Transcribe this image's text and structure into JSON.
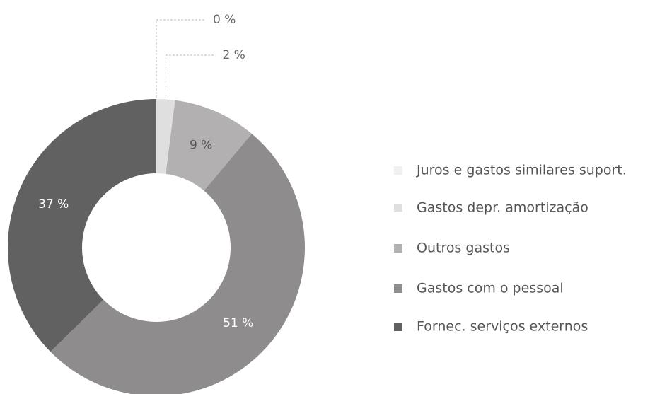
{
  "chart_data": {
    "type": "donut",
    "categories": [
      "Juros e gastos similares suport.",
      "Gastos depr. amortização",
      "Outros gastos",
      "Gastos com o pessoal",
      "Fornec. serviços externos"
    ],
    "values": [
      0,
      2,
      9,
      51,
      37
    ],
    "value_labels": [
      "0 %",
      "2 %",
      "9 %",
      "51 %",
      "37 %"
    ],
    "colors": [
      "#f0f0f0",
      "#e0dfe0",
      "#b3b0b1",
      "#8e8c8d",
      "#626161"
    ],
    "legend": "right"
  }
}
